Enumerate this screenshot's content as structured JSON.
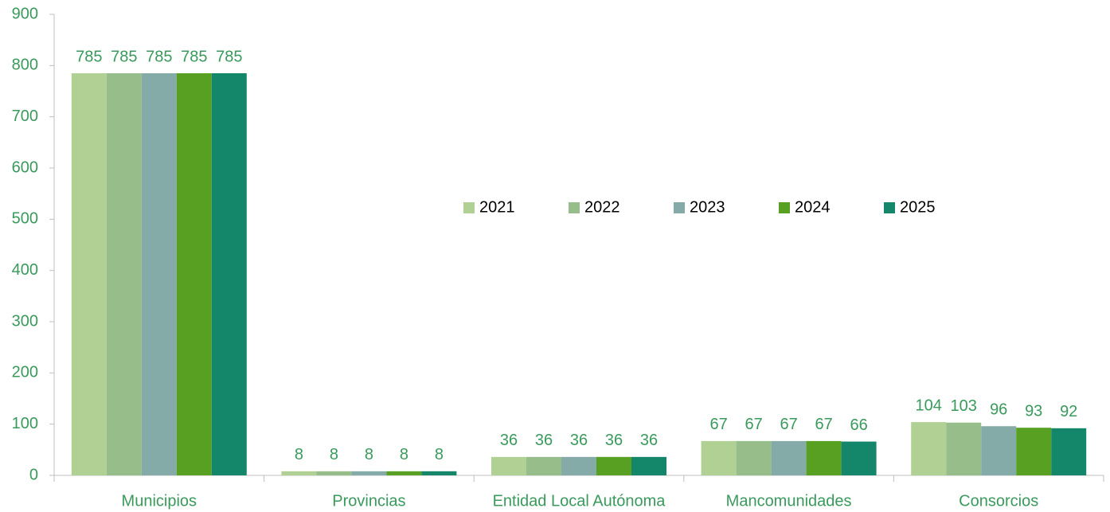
{
  "chart_data": {
    "type": "bar",
    "categories": [
      "Municipios",
      "Provincias",
      "Entidad Local Autónoma",
      "Mancomunidades",
      "Consorcios"
    ],
    "series": [
      {
        "name": "2021",
        "color": "#b0d193",
        "values": [
          785,
          8,
          36,
          67,
          104
        ]
      },
      {
        "name": "2022",
        "color": "#97bd8a",
        "values": [
          785,
          8,
          36,
          67,
          103
        ]
      },
      {
        "name": "2023",
        "color": "#84aba8",
        "values": [
          785,
          8,
          36,
          67,
          96
        ]
      },
      {
        "name": "2024",
        "color": "#58a021",
        "values": [
          785,
          8,
          36,
          67,
          93
        ]
      },
      {
        "name": "2025",
        "color": "#14866a",
        "values": [
          785,
          8,
          36,
          66,
          92
        ]
      }
    ],
    "ylim": [
      0,
      900
    ],
    "yticks": [
      0,
      100,
      200,
      300,
      400,
      500,
      600,
      700,
      800,
      900
    ],
    "grid": false,
    "legend": "center"
  }
}
